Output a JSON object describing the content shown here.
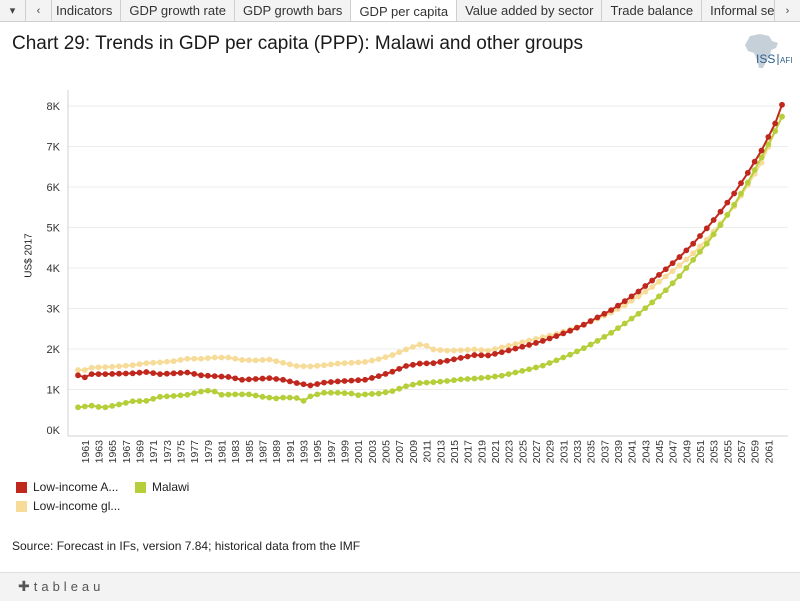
{
  "tabbar": {
    "prev_icon": "chevron-left-icon",
    "next_icon": "chevron-right-icon",
    "menu_icon": "dropdown-icon",
    "tabs": [
      {
        "label": "Indicators"
      },
      {
        "label": "GDP growth rate"
      },
      {
        "label": "GDP growth bars"
      },
      {
        "label": "GDP per capita"
      },
      {
        "label": "Value added by sector"
      },
      {
        "label": "Trade balance"
      },
      {
        "label": "Informal sector"
      }
    ],
    "active_tab": "GDP per capita"
  },
  "logo": {
    "text_main": "ISS",
    "text_sub": "AFI"
  },
  "footer": {
    "brand": "tableau"
  },
  "source": "Source: Forecast in IFs, version 7.84; historical data from the IMF",
  "colors": {
    "low_income_africa": "#c0281e",
    "malawi": "#b5cf3a",
    "low_income_global": "#f6dc98"
  },
  "chart_data": {
    "type": "line",
    "title": "Chart 29: Trends in GDP per capita (PPP): Malawi and other groups",
    "xlabel": "",
    "ylabel": "US$ 2017",
    "ylim": [
      0,
      8000
    ],
    "yticks": [
      0,
      1000,
      2000,
      3000,
      4000,
      5000,
      6000,
      7000,
      8000
    ],
    "ytick_labels": [
      "0K",
      "1K",
      "2K",
      "3K",
      "4K",
      "5K",
      "6K",
      "7K",
      "8K"
    ],
    "x_start": 1960,
    "x_end": 2063,
    "xtick_labels": [
      "1961",
      "1963",
      "1965",
      "1967",
      "1969",
      "1971",
      "1973",
      "1975",
      "1977",
      "1979",
      "1981",
      "1983",
      "1985",
      "1987",
      "1989",
      "1991",
      "1993",
      "1995",
      "1997",
      "1999",
      "2001",
      "2003",
      "2005",
      "2007",
      "2009",
      "2011",
      "2013",
      "2015",
      "2017",
      "2019",
      "2021",
      "2023",
      "2025",
      "2027",
      "2029",
      "2031",
      "2033",
      "2035",
      "2037",
      "2039",
      "2041",
      "2043",
      "2045",
      "2047",
      "2049",
      "2051",
      "2053",
      "2055",
      "2057",
      "2059",
      "2061"
    ],
    "legend": [
      {
        "name": "Low-income A...",
        "color": "#c0281e"
      },
      {
        "name": "Malawi",
        "color": "#b5cf3a"
      },
      {
        "name": "Low-income gl...",
        "color": "#f6dc98"
      }
    ],
    "series": [
      {
        "name": "Low-income gl...",
        "color": "#f6dc98",
        "anchors": [
          [
            1960,
            1480
          ],
          [
            1961,
            1480
          ],
          [
            1962,
            1540
          ],
          [
            1965,
            1560
          ],
          [
            1968,
            1600
          ],
          [
            1970,
            1650
          ],
          [
            1972,
            1670
          ],
          [
            1974,
            1700
          ],
          [
            1976,
            1760
          ],
          [
            1978,
            1760
          ],
          [
            1980,
            1790
          ],
          [
            1982,
            1790
          ],
          [
            1984,
            1730
          ],
          [
            1986,
            1720
          ],
          [
            1988,
            1740
          ],
          [
            1990,
            1660
          ],
          [
            1992,
            1580
          ],
          [
            1994,
            1570
          ],
          [
            1996,
            1600
          ],
          [
            1998,
            1640
          ],
          [
            2000,
            1660
          ],
          [
            2002,
            1680
          ],
          [
            2004,
            1750
          ],
          [
            2006,
            1850
          ],
          [
            2008,
            1990
          ],
          [
            2010,
            2110
          ],
          [
            2011,
            2080
          ],
          [
            2012,
            1990
          ],
          [
            2014,
            1960
          ],
          [
            2016,
            1970
          ],
          [
            2018,
            1990
          ],
          [
            2020,
            1960
          ],
          [
            2022,
            2040
          ],
          [
            2024,
            2120
          ],
          [
            2026,
            2210
          ],
          [
            2028,
            2290
          ],
          [
            2030,
            2370
          ],
          [
            2032,
            2480
          ],
          [
            2034,
            2600
          ],
          [
            2036,
            2750
          ],
          [
            2038,
            2900
          ],
          [
            2040,
            3080
          ],
          [
            2042,
            3300
          ],
          [
            2044,
            3530
          ],
          [
            2046,
            3790
          ],
          [
            2048,
            4060
          ],
          [
            2050,
            4360
          ],
          [
            2052,
            4700
          ],
          [
            2054,
            5100
          ],
          [
            2056,
            5520
          ],
          [
            2058,
            6050
          ],
          [
            2060,
            6600
          ],
          [
            2062,
            7380
          ],
          [
            2063,
            7730
          ]
        ]
      },
      {
        "name": "Malawi",
        "color": "#b5cf3a",
        "anchors": [
          [
            1960,
            560
          ],
          [
            1961,
            580
          ],
          [
            1962,
            600
          ],
          [
            1963,
            570
          ],
          [
            1964,
            560
          ],
          [
            1966,
            630
          ],
          [
            1968,
            710
          ],
          [
            1970,
            720
          ],
          [
            1972,
            820
          ],
          [
            1974,
            840
          ],
          [
            1976,
            870
          ],
          [
            1978,
            950
          ],
          [
            1979,
            970
          ],
          [
            1980,
            950
          ],
          [
            1981,
            870
          ],
          [
            1983,
            880
          ],
          [
            1985,
            880
          ],
          [
            1987,
            820
          ],
          [
            1989,
            780
          ],
          [
            1990,
            800
          ],
          [
            1991,
            800
          ],
          [
            1992,
            790
          ],
          [
            1993,
            720
          ],
          [
            1994,
            830
          ],
          [
            1995,
            880
          ],
          [
            1996,
            920
          ],
          [
            1998,
            920
          ],
          [
            2000,
            900
          ],
          [
            2001,
            860
          ],
          [
            2002,
            880
          ],
          [
            2004,
            900
          ],
          [
            2006,
            960
          ],
          [
            2008,
            1080
          ],
          [
            2010,
            1160
          ],
          [
            2012,
            1180
          ],
          [
            2014,
            1210
          ],
          [
            2016,
            1250
          ],
          [
            2018,
            1270
          ],
          [
            2020,
            1300
          ],
          [
            2022,
            1340
          ],
          [
            2024,
            1420
          ],
          [
            2026,
            1500
          ],
          [
            2028,
            1590
          ],
          [
            2030,
            1720
          ],
          [
            2032,
            1860
          ],
          [
            2034,
            2020
          ],
          [
            2036,
            2200
          ],
          [
            2038,
            2400
          ],
          [
            2040,
            2630
          ],
          [
            2042,
            2870
          ],
          [
            2044,
            3150
          ],
          [
            2046,
            3450
          ],
          [
            2048,
            3800
          ],
          [
            2050,
            4200
          ],
          [
            2052,
            4600
          ],
          [
            2054,
            5060
          ],
          [
            2056,
            5560
          ],
          [
            2058,
            6110
          ],
          [
            2060,
            6730
          ],
          [
            2062,
            7380
          ],
          [
            2063,
            7740
          ]
        ]
      },
      {
        "name": "Low-income A...",
        "color": "#c0281e",
        "anchors": [
          [
            1960,
            1350
          ],
          [
            1961,
            1300
          ],
          [
            1962,
            1380
          ],
          [
            1964,
            1380
          ],
          [
            1966,
            1390
          ],
          [
            1968,
            1400
          ],
          [
            1970,
            1430
          ],
          [
            1972,
            1380
          ],
          [
            1974,
            1400
          ],
          [
            1976,
            1420
          ],
          [
            1978,
            1350
          ],
          [
            1980,
            1330
          ],
          [
            1982,
            1310
          ],
          [
            1984,
            1240
          ],
          [
            1986,
            1260
          ],
          [
            1988,
            1280
          ],
          [
            1990,
            1240
          ],
          [
            1992,
            1160
          ],
          [
            1994,
            1100
          ],
          [
            1996,
            1170
          ],
          [
            1998,
            1200
          ],
          [
            2000,
            1220
          ],
          [
            2002,
            1240
          ],
          [
            2004,
            1330
          ],
          [
            2006,
            1440
          ],
          [
            2008,
            1580
          ],
          [
            2010,
            1640
          ],
          [
            2012,
            1650
          ],
          [
            2014,
            1710
          ],
          [
            2016,
            1780
          ],
          [
            2018,
            1850
          ],
          [
            2020,
            1840
          ],
          [
            2022,
            1920
          ],
          [
            2024,
            2010
          ],
          [
            2026,
            2100
          ],
          [
            2028,
            2200
          ],
          [
            2030,
            2320
          ],
          [
            2032,
            2450
          ],
          [
            2034,
            2600
          ],
          [
            2036,
            2780
          ],
          [
            2038,
            2960
          ],
          [
            2040,
            3180
          ],
          [
            2042,
            3420
          ],
          [
            2044,
            3690
          ],
          [
            2046,
            3970
          ],
          [
            2048,
            4270
          ],
          [
            2050,
            4600
          ],
          [
            2052,
            4980
          ],
          [
            2054,
            5390
          ],
          [
            2056,
            5840
          ],
          [
            2058,
            6350
          ],
          [
            2060,
            6900
          ],
          [
            2062,
            7570
          ],
          [
            2063,
            8030
          ]
        ]
      }
    ]
  }
}
